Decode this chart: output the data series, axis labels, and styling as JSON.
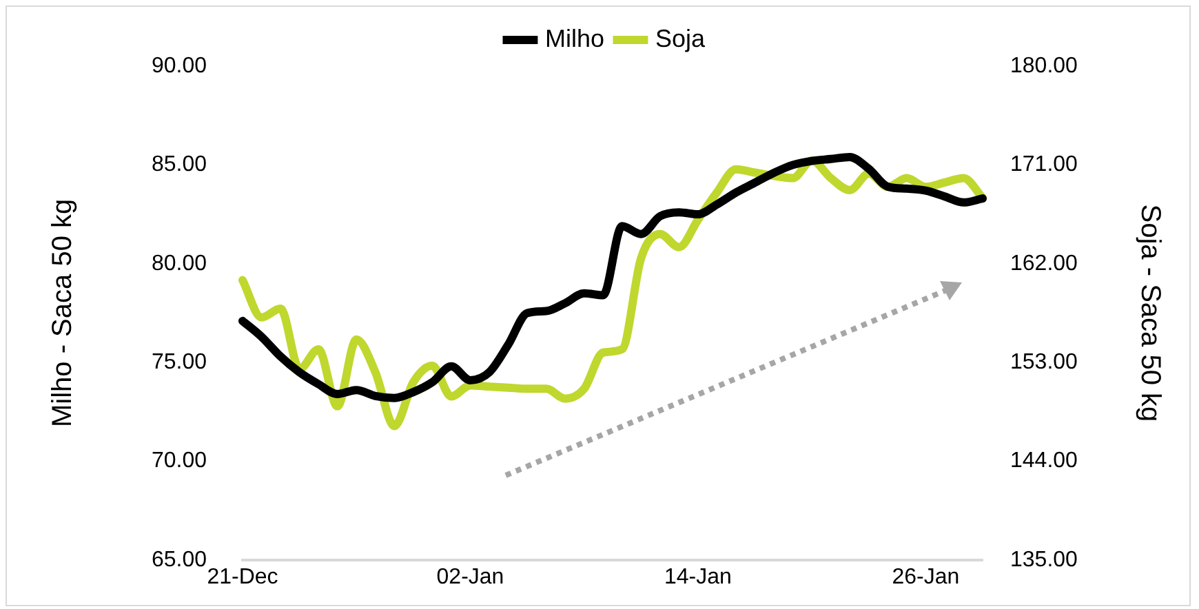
{
  "chart_data": {
    "type": "line",
    "ylabel": "Milho - Saca 50 kg",
    "y2label": "Soja - Saca 50 kg",
    "legend": "top",
    "grid": false,
    "marker": "none",
    "line_style": "solid",
    "categories": [
      "21-Dec",
      null,
      null,
      null,
      null,
      null,
      null,
      null,
      null,
      null,
      null,
      null,
      "02-Jan",
      null,
      null,
      null,
      null,
      null,
      null,
      null,
      null,
      null,
      null,
      null,
      "14-Jan",
      null,
      null,
      null,
      null,
      null,
      null,
      null,
      null,
      null,
      null,
      null,
      "26-Jan",
      null,
      null,
      null
    ],
    "ylim": [
      65,
      90
    ],
    "yticks": [
      {
        "value": 65,
        "label": "65.00"
      },
      {
        "value": 70,
        "label": "70.00"
      },
      {
        "value": 75,
        "label": "75.00"
      },
      {
        "value": 80,
        "label": "80.00"
      },
      {
        "value": 85,
        "label": "85.00"
      },
      {
        "value": 90,
        "label": "90.00"
      }
    ],
    "y2lim": [
      135,
      180
    ],
    "y2ticks": [
      {
        "value": 135,
        "label": "135.00"
      },
      {
        "value": 144,
        "label": "144.00"
      },
      {
        "value": 153,
        "label": "153.00"
      },
      {
        "value": 162,
        "label": "162.00"
      },
      {
        "value": 171,
        "label": "171.00"
      },
      {
        "value": 180,
        "label": "180.00"
      }
    ],
    "series": [
      {
        "name": "Milho",
        "color": "#000000",
        "values": [
          77.1,
          76.3,
          75.3,
          74.5,
          73.9,
          73.4,
          73.6,
          73.3,
          73.2,
          73.5,
          74.0,
          74.8,
          74.1,
          74.5,
          75.9,
          77.5,
          77.6,
          78.0,
          78.5,
          78.4,
          81.9,
          81.5,
          82.4,
          82.6,
          82.5,
          83.0,
          83.6,
          84.1,
          84.6,
          85.0,
          85.2,
          85.3,
          85.4,
          84.8,
          83.9,
          83.8,
          83.7,
          83.4,
          83.1,
          83.3
        ]
      },
      {
        "name": "Soja",
        "color": "#c0d72e",
        "axis": "y2",
        "values": [
          160.5,
          157.1,
          157.9,
          152.4,
          154.2,
          149.0,
          155.1,
          152.1,
          147.2,
          151.2,
          152.7,
          149.9,
          150.9,
          150.8,
          150.7,
          150.6,
          150.6,
          149.7,
          150.6,
          153.9,
          154.2,
          162.5,
          164.7,
          163.5,
          166.0,
          168.5,
          170.6,
          170.3,
          170.0,
          169.8,
          171.4,
          169.8,
          168.7,
          170.2,
          169.0,
          169.8,
          169.0,
          169.4,
          169.8,
          168.0
        ]
      }
    ]
  }
}
